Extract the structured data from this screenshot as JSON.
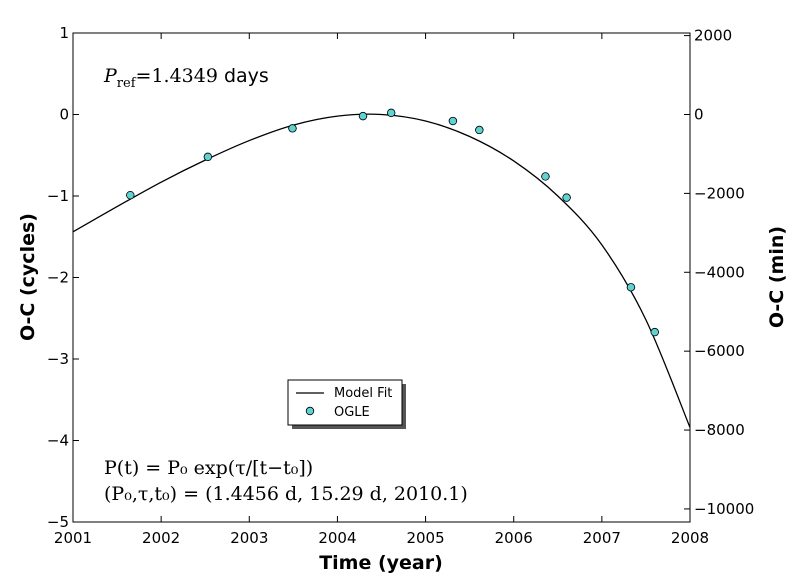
{
  "chart_data": {
    "type": "scatter",
    "xlabel": "Time (year)",
    "ylabel": "O-C (cycles)",
    "ylabel_right": "O-C (min)",
    "xlim": [
      2001,
      2008
    ],
    "ylim": [
      -5,
      1
    ],
    "ylim_right": [
      -10331.28,
      2066.26
    ],
    "x_ticks": [
      2001,
      2002,
      2003,
      2004,
      2005,
      2006,
      2007,
      2008
    ],
    "y_ticks": [
      1,
      0,
      -1,
      -2,
      -3,
      -4,
      -5
    ],
    "y_ticks_right": [
      2000,
      0,
      -2000,
      -4000,
      -6000,
      -8000,
      -10000
    ],
    "grid": false,
    "legend_placement": "lower-center",
    "legend": {
      "fit_label": "Model Fit",
      "points_label": "OGLE"
    },
    "annotations": {
      "pref_symbol": "P",
      "pref_subscript": "ref",
      "pref_value": "=1.4349",
      "pref_unit": "days",
      "formula_line1": "P(t) = P₀ exp(τ/[t−t₀])",
      "formula_line2": "(P₀,τ,t₀) = (1.4456 d, 15.29 d, 2010.1)"
    },
    "colors": {
      "points_fill": "#5fd3d3",
      "line": "#000000"
    },
    "series": [
      {
        "name": "Model Fit",
        "kind": "line",
        "x": [
          2001.0,
          2001.5,
          2002.0,
          2002.5,
          2003.0,
          2003.5,
          2004.0,
          2004.5,
          2005.0,
          2005.5,
          2006.0,
          2006.5,
          2007.0,
          2007.5,
          2008.0
        ],
        "y": [
          -1.44,
          -1.13,
          -0.83,
          -0.56,
          -0.32,
          -0.13,
          -0.02,
          0.0,
          -0.08,
          -0.27,
          -0.57,
          -1.0,
          -1.6,
          -2.52,
          -3.84
        ]
      },
      {
        "name": "OGLE",
        "kind": "points",
        "x": [
          2001.65,
          2002.53,
          2003.49,
          2004.29,
          2004.61,
          2005.31,
          2005.61,
          2006.36,
          2006.6,
          2007.33,
          2007.6
        ],
        "y": [
          -0.99,
          -0.52,
          -0.17,
          -0.02,
          0.02,
          -0.08,
          -0.19,
          -0.76,
          -1.02,
          -2.12,
          -2.67
        ]
      }
    ]
  }
}
